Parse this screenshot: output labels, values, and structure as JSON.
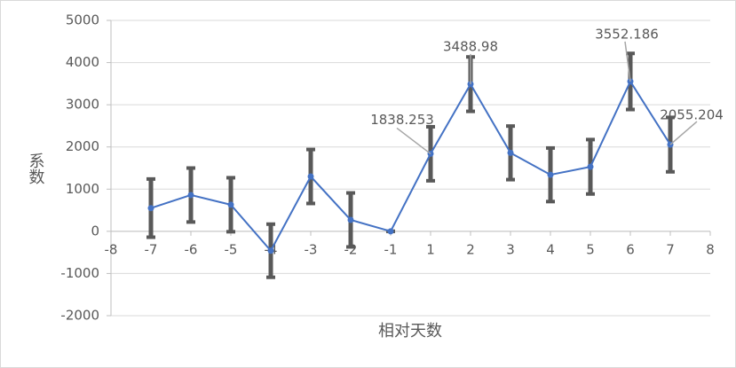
{
  "chart_data": {
    "type": "line",
    "x_label": "相对天数",
    "y_label": "系数",
    "categories": [
      "-8",
      "-7",
      "-6",
      "-5",
      "-4",
      "-3",
      "-2",
      "-1",
      "1",
      "2",
      "3",
      "4",
      "5",
      "6",
      "7",
      "8"
    ],
    "series": [
      {
        "name": null,
        "color": "#4472c4",
        "values": [
          null,
          550,
          860,
          630,
          -460,
          1300,
          270,
          0,
          1838.253,
          3488.98,
          1860,
          1340,
          1530,
          3552.186,
          2055.204,
          null
        ],
        "errors": [
          null,
          690,
          640,
          640,
          630,
          640,
          640,
          0,
          640,
          645,
          635,
          635,
          645,
          665,
          645,
          null
        ],
        "value_labels": [
          null,
          null,
          null,
          null,
          null,
          null,
          null,
          null,
          "1838.253",
          "3488.98",
          null,
          null,
          null,
          "3552.186",
          "2055.204",
          null
        ]
      }
    ],
    "error_color": "#595959",
    "ylim": [
      -2000,
      5000
    ],
    "yticks": [
      -2000,
      -1000,
      0,
      1000,
      2000,
      3000,
      4000,
      5000
    ],
    "grid": true
  }
}
